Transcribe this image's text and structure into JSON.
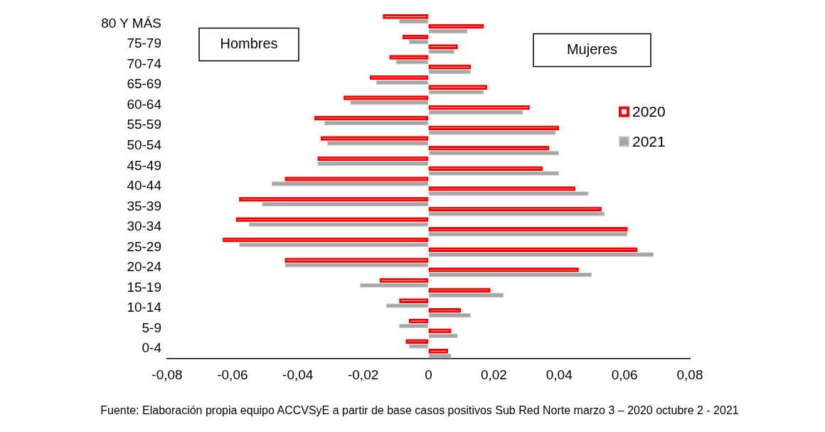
{
  "chart_data": {
    "type": "bar",
    "orientation": "horizontal",
    "categories": [
      "80 Y MÁS",
      "75-79",
      "70-74",
      "65-69",
      "60-64",
      "55-59",
      "50-54",
      "45-49",
      "40-44",
      "35-39",
      "30-34",
      "25-29",
      "20-24",
      "15-19",
      "10-14",
      "5-9",
      "0-4"
    ],
    "series": [
      {
        "name": "2020",
        "color": "#ff0000",
        "values": [
          -0.014,
          -0.008,
          -0.012,
          -0.018,
          -0.026,
          -0.035,
          -0.033,
          -0.034,
          -0.044,
          -0.058,
          -0.059,
          -0.063,
          -0.044,
          -0.015,
          -0.009,
          -0.006,
          -0.007
        ]
      },
      {
        "name": "2021",
        "color": "#a6a6a6",
        "values": [
          -0.009,
          -0.006,
          -0.01,
          -0.016,
          -0.024,
          -0.032,
          -0.031,
          -0.034,
          -0.048,
          -0.051,
          -0.055,
          -0.058,
          -0.044,
          -0.021,
          -0.013,
          -0.009,
          -0.006
        ]
      },
      {
        "color": "#ff0000",
        "values": [
          0.017,
          0.009,
          0.013,
          0.018,
          0.031,
          0.04,
          0.037,
          0.035,
          0.045,
          0.053,
          0.061,
          0.064,
          0.046,
          0.019,
          0.01,
          0.007,
          0.006
        ]
      },
      {
        "color": "#a6a6a6",
        "values": [
          0.012,
          0.008,
          0.013,
          0.017,
          0.029,
          0.039,
          0.04,
          0.04,
          0.049,
          0.054,
          0.061,
          0.069,
          0.05,
          0.023,
          0.013,
          0.009,
          0.007
        ]
      }
    ],
    "xlim": [
      -0.08,
      0.08
    ],
    "xticks": [
      {
        "value": -0.08,
        "label": "-0,08"
      },
      {
        "value": -0.06,
        "label": "-0,06"
      },
      {
        "value": -0.04,
        "label": "-0,04"
      },
      {
        "value": -0.02,
        "label": "-0,02"
      },
      {
        "value": 0,
        "label": "0"
      },
      {
        "value": 0.02,
        "label": "0,02"
      },
      {
        "value": 0.04,
        "label": "0,04"
      },
      {
        "value": 0.06,
        "label": "0,06"
      },
      {
        "value": 0.08,
        "label": "0,08"
      }
    ],
    "grid": false,
    "legend": "top right",
    "annotations": [
      "Hombres",
      "Mujeres",
      "Fuente: Elaboración propia equipo ACCVSyE a partir de base casos positivos Sub Red Norte marzo 3 – 2020 octubre 2 - 2021"
    ]
  }
}
